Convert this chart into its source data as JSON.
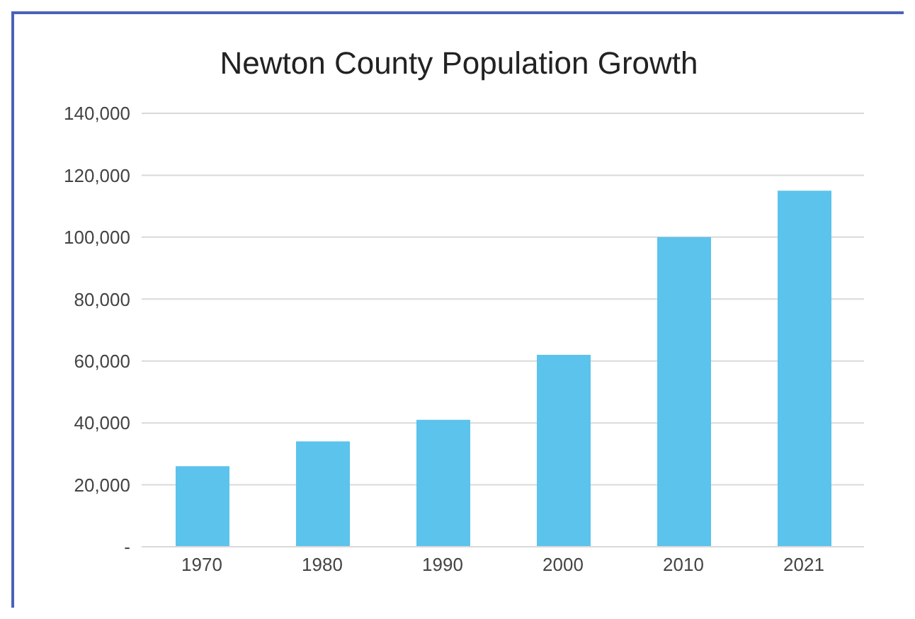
{
  "chart_data": {
    "type": "bar",
    "title": "Newton County Population Growth",
    "categories": [
      "1970",
      "1980",
      "1990",
      "2000",
      "2010",
      "2021"
    ],
    "values": [
      26000,
      34000,
      41000,
      62000,
      100000,
      115000
    ],
    "color": "#5bc3ec",
    "ylim": [
      0,
      140000
    ],
    "yticks": [
      {
        "value": 0,
        "label": "-"
      },
      {
        "value": 20000,
        "label": "20,000"
      },
      {
        "value": 40000,
        "label": "40,000"
      },
      {
        "value": 60000,
        "label": "60,000"
      },
      {
        "value": 80000,
        "label": "80,000"
      },
      {
        "value": 100000,
        "label": "100,000"
      },
      {
        "value": 120000,
        "label": "120,000"
      },
      {
        "value": 140000,
        "label": "140,000"
      }
    ],
    "grid": "y"
  }
}
